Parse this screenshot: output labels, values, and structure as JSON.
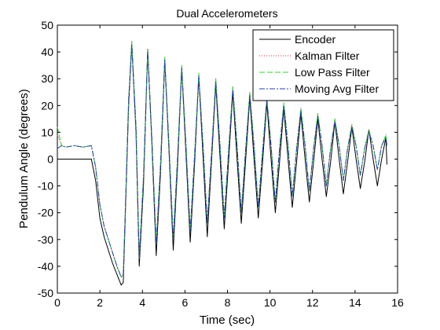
{
  "chart_data": {
    "type": "line",
    "title": "Dual Accelerometers",
    "xlabel": "Time (sec)",
    "ylabel": "Pendulum Angle (degrees)",
    "xlim": [
      0,
      16
    ],
    "ylim": [
      -50,
      50
    ],
    "xticks": [
      0,
      2,
      4,
      6,
      8,
      10,
      12,
      14,
      16
    ],
    "yticks": [
      -50,
      -40,
      -30,
      -20,
      -10,
      0,
      10,
      20,
      30,
      40,
      50
    ],
    "grid": false,
    "legend_position": "top-right",
    "series": [
      {
        "name": "Encoder",
        "color": "#000000",
        "style": "solid",
        "x": [
          0,
          1.6,
          1.8,
          2.0,
          2.2,
          2.4,
          2.6,
          2.8,
          3.0,
          3.1,
          3.2,
          3.35,
          3.5,
          3.7,
          3.85,
          4.05,
          4.25,
          4.45,
          4.65,
          4.85,
          5.05,
          5.25,
          5.45,
          5.65,
          5.85,
          6.05,
          6.25,
          6.45,
          6.65,
          6.85,
          7.05,
          7.25,
          7.45,
          7.65,
          7.85,
          8.05,
          8.25,
          8.45,
          8.65,
          8.85,
          9.05,
          9.25,
          9.45,
          9.65,
          9.85,
          10.05,
          10.25,
          10.45,
          10.65,
          10.85,
          11.05,
          11.25,
          11.45,
          11.65,
          11.85,
          12.05,
          12.25,
          12.45,
          12.65,
          12.85,
          13.05,
          13.25,
          13.45,
          13.65,
          13.85,
          14.05,
          14.25,
          14.45,
          14.65,
          14.85,
          15.05,
          15.25,
          15.45,
          15.5
        ],
        "values": [
          0,
          0,
          -8,
          -22,
          -29,
          -34,
          -39,
          -43,
          -47,
          -46,
          -20,
          20,
          43,
          10,
          -40,
          -10,
          41,
          5,
          -36,
          -5,
          37,
          3,
          -34,
          -3,
          34,
          2,
          -31,
          -2,
          31,
          1,
          -29,
          -1,
          28,
          1,
          -26,
          -1,
          25,
          0,
          -24,
          -1,
          23,
          0,
          -22,
          -1,
          21,
          0,
          -20,
          -1,
          19,
          0,
          -18,
          -1,
          17,
          0,
          -16,
          -1,
          15,
          0,
          -14,
          -1,
          14,
          0,
          -13,
          -1,
          12,
          0,
          -11,
          -1,
          11,
          0,
          -10,
          0,
          8,
          -2
        ]
      },
      {
        "name": "Kalman Filter",
        "color": "#d62728",
        "style": "dotted",
        "x": [
          0,
          0.2,
          0.4,
          0.8,
          1.2,
          1.6,
          1.8,
          2.0,
          2.2,
          2.4,
          2.6,
          2.8,
          3.0,
          3.1,
          3.2,
          3.35,
          3.5,
          3.7,
          3.85,
          4.05,
          4.25,
          4.45,
          4.65,
          4.85,
          5.05,
          5.25,
          5.45,
          5.65,
          5.85,
          6.05,
          6.25,
          6.45,
          6.65,
          6.85,
          7.05,
          7.25,
          7.45,
          7.65,
          7.85,
          8.05,
          8.25,
          8.45,
          8.65,
          8.85,
          9.05,
          9.25,
          9.45,
          9.65,
          9.85,
          10.05,
          10.25,
          10.45,
          10.65,
          10.85,
          11.05,
          11.25,
          11.45,
          11.65,
          11.85,
          12.05,
          12.25,
          12.45,
          12.65,
          12.85,
          13.05,
          13.25,
          13.45,
          13.65,
          13.85,
          14.05,
          14.25,
          14.45,
          14.65,
          14.85,
          15.05,
          15.25,
          15.45,
          15.5
        ],
        "values": [
          9,
          5,
          4.5,
          5,
          4.5,
          5,
          -3,
          -17,
          -25,
          -30,
          -35,
          -40,
          -44,
          -43,
          -18,
          22,
          44,
          12,
          -37,
          -7,
          41,
          7,
          -32,
          -2,
          38,
          5,
          -30,
          0,
          35,
          5,
          -27,
          1,
          32,
          5,
          -24,
          2,
          30,
          5,
          -22,
          3,
          27,
          5,
          -20,
          3,
          25,
          5,
          -18,
          3,
          23,
          5,
          -16,
          4,
          21,
          5,
          -14,
          4,
          19,
          5,
          -12,
          4,
          17,
          5,
          -10,
          4,
          15,
          5,
          -8,
          4,
          13,
          5,
          -6,
          4,
          11,
          5,
          -4,
          5,
          9,
          5
        ]
      },
      {
        "name": "Low Pass Filter",
        "color": "#22dd22",
        "style": "dashed",
        "x": [
          0,
          0.2,
          0.4,
          0.8,
          1.2,
          1.6,
          1.8,
          2.0,
          2.2,
          2.4,
          2.6,
          2.8,
          3.0,
          3.1,
          3.2,
          3.35,
          3.5,
          3.7,
          3.85,
          4.05,
          4.25,
          4.45,
          4.65,
          4.85,
          5.05,
          5.25,
          5.45,
          5.65,
          5.85,
          6.05,
          6.25,
          6.45,
          6.65,
          6.85,
          7.05,
          7.25,
          7.45,
          7.65,
          7.85,
          8.05,
          8.25,
          8.45,
          8.65,
          8.85,
          9.05,
          9.25,
          9.45,
          9.65,
          9.85,
          10.05,
          10.25,
          10.45,
          10.65,
          10.85,
          11.05,
          11.25,
          11.45,
          11.65,
          11.85,
          12.05,
          12.25,
          12.45,
          12.65,
          12.85,
          13.05,
          13.25,
          13.45,
          13.65,
          13.85,
          14.05,
          14.25,
          14.45,
          14.65,
          14.85,
          15.05,
          15.25,
          15.45,
          15.5
        ],
        "values": [
          12,
          5,
          4.5,
          5,
          4.5,
          5,
          -3,
          -17,
          -25,
          -30,
          -35,
          -40,
          -44,
          -43,
          -18,
          22,
          44,
          12,
          -37,
          -7,
          41,
          7,
          -32,
          -2,
          38,
          5,
          -30,
          0,
          35,
          5,
          -27,
          1,
          32,
          5,
          -24,
          2,
          30,
          5,
          -22,
          3,
          27,
          5,
          -20,
          3,
          25,
          5,
          -18,
          3,
          23,
          5,
          -16,
          4,
          21,
          5,
          -14,
          4,
          19,
          5,
          -12,
          4,
          17,
          5,
          -10,
          4,
          15,
          5,
          -8,
          4,
          13,
          5,
          -6,
          4,
          11,
          5,
          -4,
          5,
          9,
          5
        ]
      },
      {
        "name": "Moving Avg Filter",
        "color": "#1f3fbf",
        "style": "dashdot",
        "x": [
          0,
          0.2,
          0.4,
          0.8,
          1.2,
          1.6,
          1.8,
          2.0,
          2.2,
          2.4,
          2.6,
          2.8,
          3.0,
          3.1,
          3.2,
          3.35,
          3.5,
          3.7,
          3.85,
          4.05,
          4.25,
          4.45,
          4.65,
          4.85,
          5.05,
          5.25,
          5.45,
          5.65,
          5.85,
          6.05,
          6.25,
          6.45,
          6.65,
          6.85,
          7.05,
          7.25,
          7.45,
          7.65,
          7.85,
          8.05,
          8.25,
          8.45,
          8.65,
          8.85,
          9.05,
          9.25,
          9.45,
          9.65,
          9.85,
          10.05,
          10.25,
          10.45,
          10.65,
          10.85,
          11.05,
          11.25,
          11.45,
          11.65,
          11.85,
          12.05,
          12.25,
          12.45,
          12.65,
          12.85,
          13.05,
          13.25,
          13.45,
          13.65,
          13.85,
          14.05,
          14.25,
          14.45,
          14.65,
          14.85,
          15.05,
          15.25,
          15.45,
          15.5
        ],
        "values": [
          4,
          5,
          4.5,
          5,
          4.5,
          5,
          -3,
          -17,
          -25,
          -30,
          -35,
          -40,
          -44,
          -43,
          -18,
          22,
          43,
          12,
          -37,
          -7,
          40,
          7,
          -32,
          -2,
          37,
          5,
          -30,
          0,
          34,
          5,
          -27,
          1,
          31,
          5,
          -24,
          2,
          29,
          5,
          -22,
          3,
          26,
          5,
          -20,
          3,
          24,
          5,
          -18,
          3,
          22,
          5,
          -16,
          4,
          20,
          5,
          -14,
          4,
          18,
          5,
          -12,
          4,
          16,
          5,
          -10,
          4,
          14,
          5,
          -8,
          4,
          12,
          5,
          -6,
          4,
          10,
          5,
          -4,
          5,
          8,
          5
        ]
      }
    ]
  }
}
